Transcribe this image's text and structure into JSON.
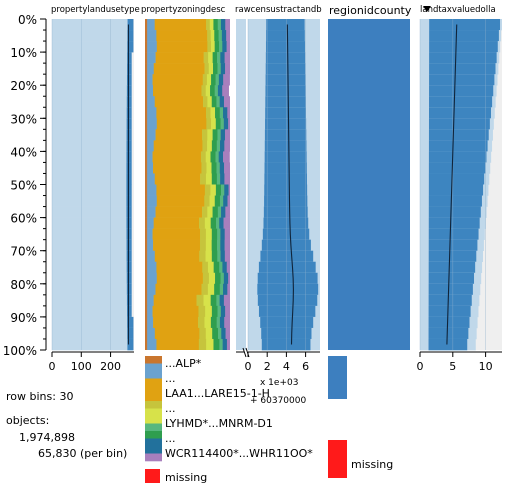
{
  "chart_data": {
    "type": "table",
    "y_axis": {
      "tick_labels": [
        "0%",
        "10%",
        "20%",
        "30%",
        "40%",
        "50%",
        "60%",
        "70%",
        "80%",
        "90%",
        "100%"
      ],
      "range": [
        0,
        100
      ]
    },
    "row_bins": 30,
    "columns": [
      {
        "name": "propertylandusetype",
        "kind": "numeric",
        "fill_color": "#c0d8ea",
        "dist_color": "#3d85c0",
        "tick_labels": [
          "0",
          "100",
          "200"
        ],
        "ticks": [
          0,
          100,
          200
        ],
        "range": [
          0,
          280
        ]
      },
      {
        "name": "propertyzoningdesc",
        "kind": "categorical",
        "legend": [
          "...ALP*",
          "...",
          "LAA1...LARE15-1-H",
          "...",
          "LYHMD*...MNRM-D1",
          "...",
          "WCR114400*...WHR11OO*"
        ],
        "missing_label": "missing",
        "missing_color": "#ff1a1a"
      },
      {
        "name": "rawcensustractandb",
        "kind": "numeric",
        "fill_color": "#c0d8ea",
        "dist_color": "#3d85c0",
        "tick_labels": [
          "0",
          "2",
          "4",
          "6"
        ],
        "ticks": [
          0,
          2,
          4,
          6
        ],
        "range": [
          0,
          7.5
        ],
        "scale_label": "x 1e+03",
        "offset_label": "+ 60370000"
      },
      {
        "name": "regionidcounty",
        "kind": "categorical",
        "fill_color": "#3d7fbf",
        "missing_label": "missing",
        "missing_color": "#ff1a1a"
      },
      {
        "name": "landtaxvaluedolla",
        "kind": "numeric",
        "fill_color": "#c0d8ea",
        "dist_color": "#3d85c0",
        "tick_labels": [
          "0",
          "5",
          "10"
        ],
        "ticks": [
          0,
          5,
          10
        ],
        "range": [
          0,
          12.5
        ]
      }
    ],
    "sort_icon": "sort-descending-icon"
  },
  "info": {
    "row_bins_label": "row bins: 30",
    "objects_label": "objects:",
    "objects_count": "1,974,898",
    "per_bin": "65,830 (per bin)"
  }
}
